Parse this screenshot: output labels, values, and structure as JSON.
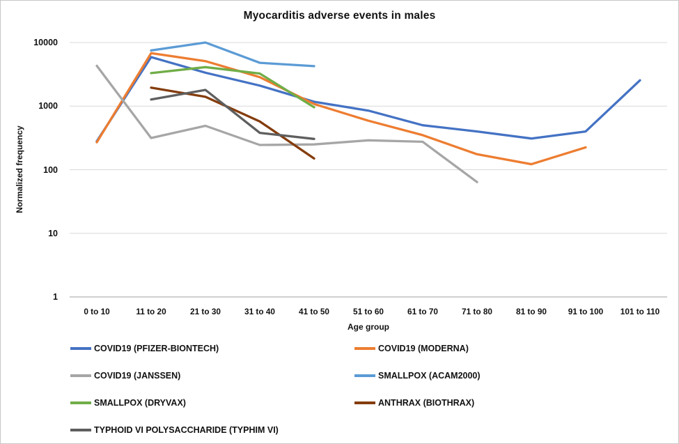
{
  "title": "Myocarditis adverse events in males",
  "chart_data": {
    "type": "line",
    "title": "Myocarditis adverse events in males",
    "xlabel": "Age group",
    "ylabel": "Normalized frequency",
    "y_scale": "log",
    "ylim": [
      1,
      10000
    ],
    "y_ticks": [
      10000,
      1000,
      100,
      10,
      1
    ],
    "grid": "horizontal gridlines only, light gray",
    "legend_position": "bottom, two columns",
    "categories": [
      "0 to 10",
      "11 to 20",
      "21 to 30",
      "31 to 40",
      "41 to 50",
      "51 to 60",
      "61 to 70",
      "71 to 80",
      "81 to 90",
      "91 to 100",
      "101 to 110"
    ],
    "series": [
      {
        "name": "COVID19 (PFIZER-BIONTECH)",
        "color": "#4472C4",
        "values": [
          280,
          5900,
          3350,
          2100,
          1170,
          850,
          500,
          400,
          310,
          400,
          2550
        ]
      },
      {
        "name": "COVID19 (MODERNA)",
        "color": "#ED7D31",
        "values": [
          270,
          6800,
          5100,
          2850,
          1080,
          590,
          350,
          175,
          122,
          225,
          null
        ]
      },
      {
        "name": "COVID19 (JANSSEN)",
        "color": "#A6A6A6",
        "values": [
          4300,
          315,
          490,
          245,
          250,
          290,
          275,
          64,
          null,
          null,
          null
        ]
      },
      {
        "name": "SMALLPOX (ACAM2000)",
        "color": "#5B9BD5",
        "values": [
          null,
          7500,
          10000,
          4800,
          4250,
          null,
          null,
          null,
          null,
          null,
          null
        ]
      },
      {
        "name": "SMALLPOX (DRYVAX)",
        "color": "#70AD47",
        "values": [
          null,
          3300,
          4100,
          3250,
          960,
          null,
          null,
          null,
          null,
          null,
          null
        ]
      },
      {
        "name": "ANTHRAX (BIOTHRAX)",
        "color": "#843C0C",
        "values": [
          null,
          1950,
          1400,
          575,
          150,
          null,
          null,
          null,
          null,
          null,
          null
        ]
      },
      {
        "name": "TYPHOID VI POLYSACCHARIDE (TYPHIM VI)",
        "color": "#5E5E5E",
        "values": [
          null,
          1270,
          1800,
          380,
          305,
          null,
          null,
          null,
          null,
          null,
          null
        ]
      }
    ],
    "legend_columns": [
      [
        0,
        2,
        4,
        6
      ],
      [
        1,
        3,
        5
      ]
    ],
    "axis_color": "#BFBFBF",
    "gridline_color": "#D9D9D9"
  }
}
